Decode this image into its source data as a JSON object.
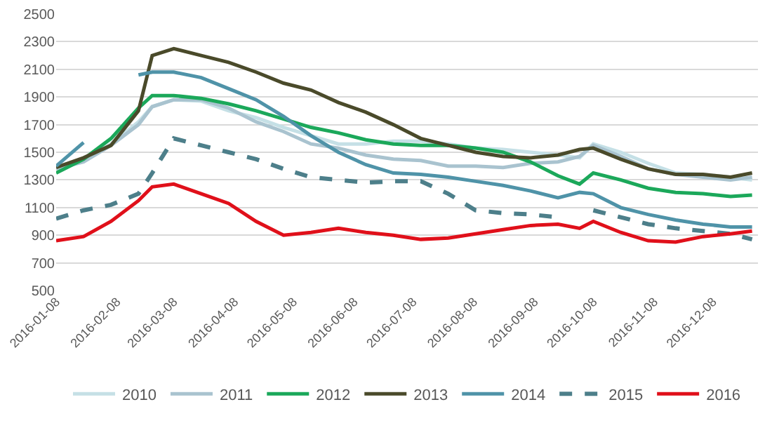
{
  "chart_data": {
    "type": "line",
    "x": [
      "2016-01-08",
      "2016-01-22",
      "2016-02-05",
      "2016-02-19",
      "2016-02-26",
      "2016-03-08",
      "2016-03-22",
      "2016-04-05",
      "2016-04-19",
      "2016-05-03",
      "2016-05-17",
      "2016-05-31",
      "2016-06-14",
      "2016-06-28",
      "2016-07-12",
      "2016-07-26",
      "2016-08-09",
      "2016-08-23",
      "2016-09-06",
      "2016-09-20",
      "2016-10-01",
      "2016-10-08",
      "2016-10-22",
      "2016-11-05",
      "2016-11-19",
      "2016-12-03",
      "2016-12-17",
      "2016-12-28"
    ],
    "series": [
      {
        "name": "2010",
        "color": "#c5e0e6",
        "line_style": "solid",
        "values": [
          1400,
          1440,
          1560,
          1720,
          1830,
          1880,
          1870,
          1800,
          1750,
          1680,
          1620,
          1560,
          1560,
          1580,
          1580,
          1560,
          1530,
          1520,
          1500,
          1480,
          1460,
          1560,
          1500,
          1420,
          1350,
          1340,
          1320,
          1300
        ]
      },
      {
        "name": "2011",
        "color": "#a9c3cf",
        "line_style": "solid",
        "values": [
          1380,
          1430,
          1550,
          1700,
          1830,
          1880,
          1880,
          1820,
          1720,
          1650,
          1560,
          1530,
          1480,
          1450,
          1440,
          1400,
          1400,
          1390,
          1420,
          1430,
          1470,
          1550,
          1470,
          1380,
          1340,
          1320,
          1300,
          1320
        ]
      },
      {
        "name": "2012",
        "color": "#1ba85a",
        "line_style": "solid",
        "values": [
          1350,
          1450,
          1600,
          1820,
          1910,
          1910,
          1890,
          1850,
          1800,
          1740,
          1680,
          1640,
          1590,
          1560,
          1550,
          1550,
          1530,
          1500,
          1430,
          1330,
          1270,
          1350,
          1300,
          1240,
          1210,
          1200,
          1180,
          1190
        ]
      },
      {
        "name": "2013",
        "color": "#4a4a2a",
        "line_style": "solid",
        "values": [
          1390,
          1460,
          1550,
          1800,
          2200,
          2250,
          2200,
          2150,
          2080,
          2000,
          1950,
          1860,
          1790,
          1700,
          1600,
          1550,
          1500,
          1470,
          1460,
          1480,
          1520,
          1530,
          1450,
          1380,
          1340,
          1340,
          1320,
          1350
        ]
      },
      {
        "name": "2014",
        "color": "#4f93a8",
        "line_style": "solid",
        "values": [
          1400,
          1570,
          null,
          2060,
          2080,
          2080,
          2040,
          1960,
          1880,
          1760,
          1620,
          1500,
          1410,
          1350,
          1340,
          1320,
          1290,
          1260,
          1220,
          1170,
          1210,
          1200,
          1100,
          1050,
          1010,
          980,
          960,
          960
        ]
      },
      {
        "name": "2015",
        "color": "#4d7f8a",
        "line_style": "dashed",
        "values": [
          1020,
          1080,
          1120,
          1200,
          1350,
          1600,
          1550,
          1500,
          1450,
          1380,
          1320,
          1300,
          1280,
          1290,
          1290,
          1200,
          1080,
          1060,
          1050,
          1030,
          null,
          1080,
          1030,
          980,
          950,
          930,
          910,
          870
        ]
      },
      {
        "name": "2016",
        "color": "#e0101a",
        "line_style": "solid",
        "values": [
          860,
          890,
          1000,
          1150,
          1250,
          1270,
          1200,
          1130,
          1000,
          900,
          920,
          950,
          920,
          900,
          870,
          880,
          910,
          940,
          970,
          980,
          950,
          1000,
          920,
          860,
          850,
          890,
          910,
          930
        ]
      }
    ],
    "xlim": [
      "2016-01-08",
      "2016-12-31"
    ],
    "xticks": [
      "2016-01-08",
      "2016-02-08",
      "2016-03-08",
      "2016-04-08",
      "2016-05-08",
      "2016-06-08",
      "2016-07-08",
      "2016-08-08",
      "2016-09-08",
      "2016-10-08",
      "2016-11-08",
      "2016-12-08"
    ],
    "ylim": [
      500,
      2500
    ],
    "yticks": [
      500,
      700,
      900,
      1100,
      1300,
      1500,
      1700,
      1900,
      2100,
      2300,
      2500
    ],
    "grid": "y",
    "legend": "bottom",
    "marker": "none"
  }
}
